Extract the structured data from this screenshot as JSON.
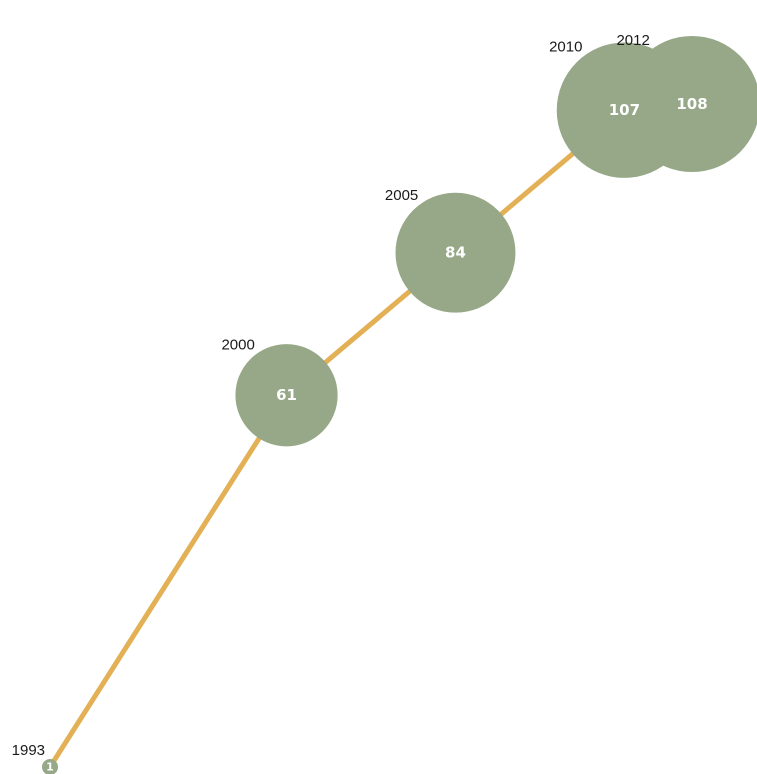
{
  "chart_data": {
    "type": "bubble-line",
    "title": "",
    "xlabel": "",
    "ylabel": "",
    "x": [
      "1993",
      "2000",
      "2005",
      "2010",
      "2012"
    ],
    "values": [
      1,
      61,
      84,
      107,
      108
    ],
    "colors": {
      "line": "#E3B055",
      "bubble": "#96A887",
      "value_text": "#FFFFFF",
      "year_text": "#1A1A1A"
    }
  }
}
